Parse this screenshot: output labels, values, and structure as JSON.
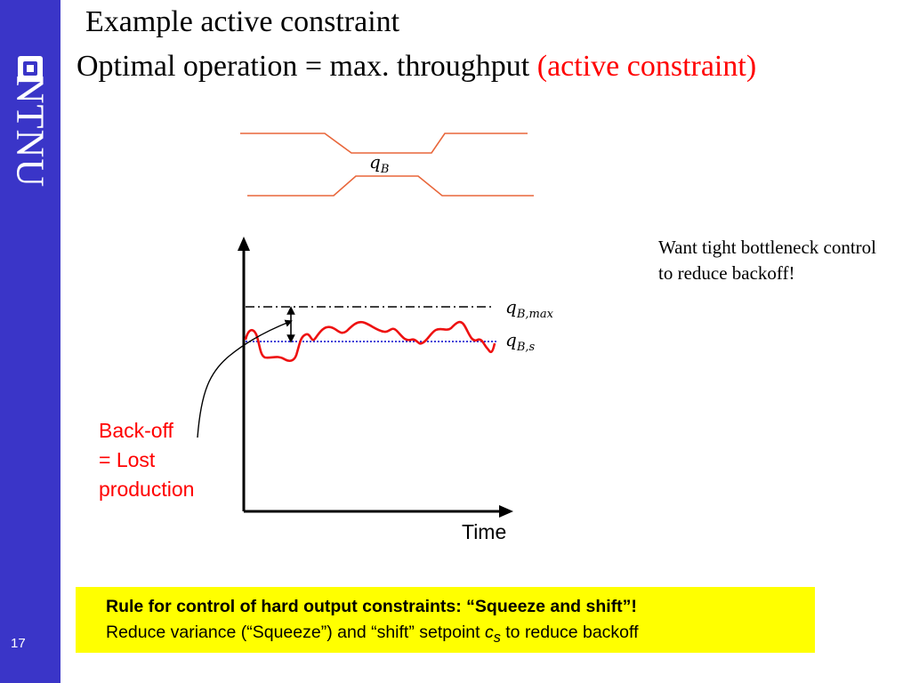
{
  "sidebar": {
    "logo_text": "NTNU",
    "page_number": "17",
    "background_color": "#3a35c8"
  },
  "title": {
    "line1": "Example active constraint",
    "line2_prefix": "Optimal operation =  max. throughput ",
    "line2_highlight": "(active constraint)",
    "highlight_color": "#ff0000"
  },
  "diagram": {
    "bottleneck_label": "q",
    "bottleneck_subscript": "B",
    "max_label": "q",
    "max_subscript": "B,max",
    "setpoint_label": "q",
    "setpoint_subscript": "B,s",
    "x_axis_label": "Time",
    "pipe_color": "#e8663a",
    "signal_color": "#ee1111",
    "setpoint_line_color": "#0000cc"
  },
  "annotations": {
    "note": " Want tight bottleneck control to reduce backoff!",
    "backoff_line1": "Back-off",
    "backoff_line2": "= Lost",
    "backoff_line3": "production"
  },
  "rule_box": {
    "line1": "Rule for control of hard output constraints: “Squeeze and shift”!",
    "line2_prefix": "Reduce variance (“Squeeze”) and “shift” setpoint ",
    "line2_var": "c",
    "line2_sub": "s",
    "line2_suffix": " to reduce backoff",
    "background_color": "#ffff00"
  }
}
